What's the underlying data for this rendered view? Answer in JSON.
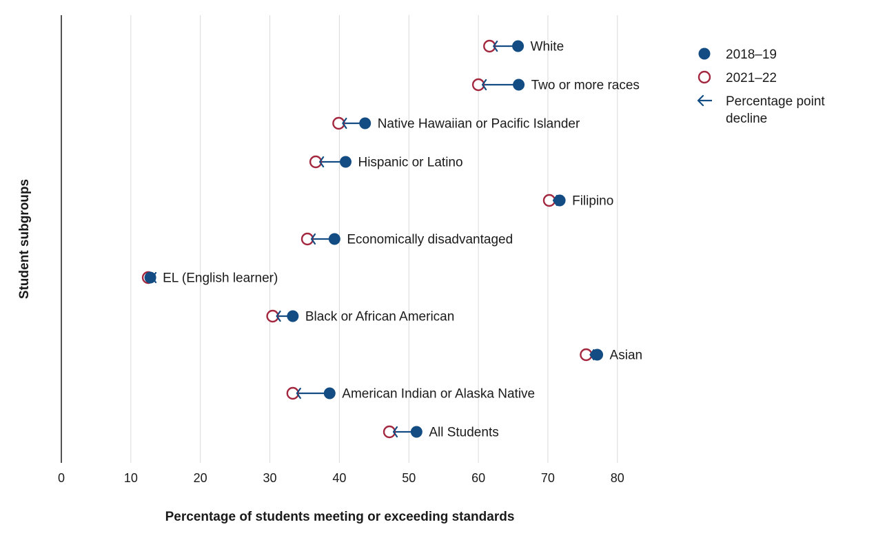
{
  "chart_data": {
    "type": "dumbbell",
    "xlabel": "Percentage of students meeting or exceeding standards",
    "ylabel": "Student subgroups",
    "xlim": [
      0,
      85
    ],
    "xticks": [
      0,
      10,
      20,
      30,
      40,
      50,
      60,
      70,
      80
    ],
    "xtick_labels": [
      "0",
      "10",
      "20",
      "30",
      "40",
      "50",
      "60",
      "70",
      "80"
    ],
    "grid": true,
    "legend_position": "top-right",
    "colors": {
      "series_2018": "#124c82",
      "series_2021": "#a3273f",
      "arrow": "#124c82",
      "grid": "#d9d9d9",
      "axis": "#1a1a1a"
    },
    "legend": {
      "items": [
        {
          "key": "2018",
          "label": "2018–19"
        },
        {
          "key": "2021",
          "label": "2021–22"
        },
        {
          "key": "arrow",
          "label_lines": [
            "Percentage point",
            "decline"
          ]
        }
      ]
    },
    "series": [
      {
        "name": "2018–19",
        "key": "v2018",
        "marker": "filled-circle"
      },
      {
        "name": "2021–22",
        "key": "v2021",
        "marker": "open-circle"
      }
    ],
    "categories": [
      {
        "label": "White",
        "v2018": 65.7,
        "v2021": 61.6
      },
      {
        "label": "Two or more races",
        "v2018": 65.8,
        "v2021": 60.0
      },
      {
        "label": "Native Hawaiian or Pacific Islander",
        "v2018": 43.7,
        "v2021": 39.9
      },
      {
        "label": "Hispanic or Latino",
        "v2018": 40.9,
        "v2021": 36.6
      },
      {
        "label": "Filipino",
        "v2018": 71.7,
        "v2021": 70.2
      },
      {
        "label": "Economically disadvantaged",
        "v2018": 39.3,
        "v2021": 35.4
      },
      {
        "label": "EL (English learner)",
        "v2018": 12.8,
        "v2021": 12.5
      },
      {
        "label": "Black or African American",
        "v2018": 33.3,
        "v2021": 30.4
      },
      {
        "label": "Asian",
        "v2018": 77.1,
        "v2021": 75.5
      },
      {
        "label": "American Indian or Alaska Native",
        "v2018": 38.6,
        "v2021": 33.3
      },
      {
        "label": "All Students",
        "v2018": 51.1,
        "v2021": 47.2
      }
    ]
  }
}
